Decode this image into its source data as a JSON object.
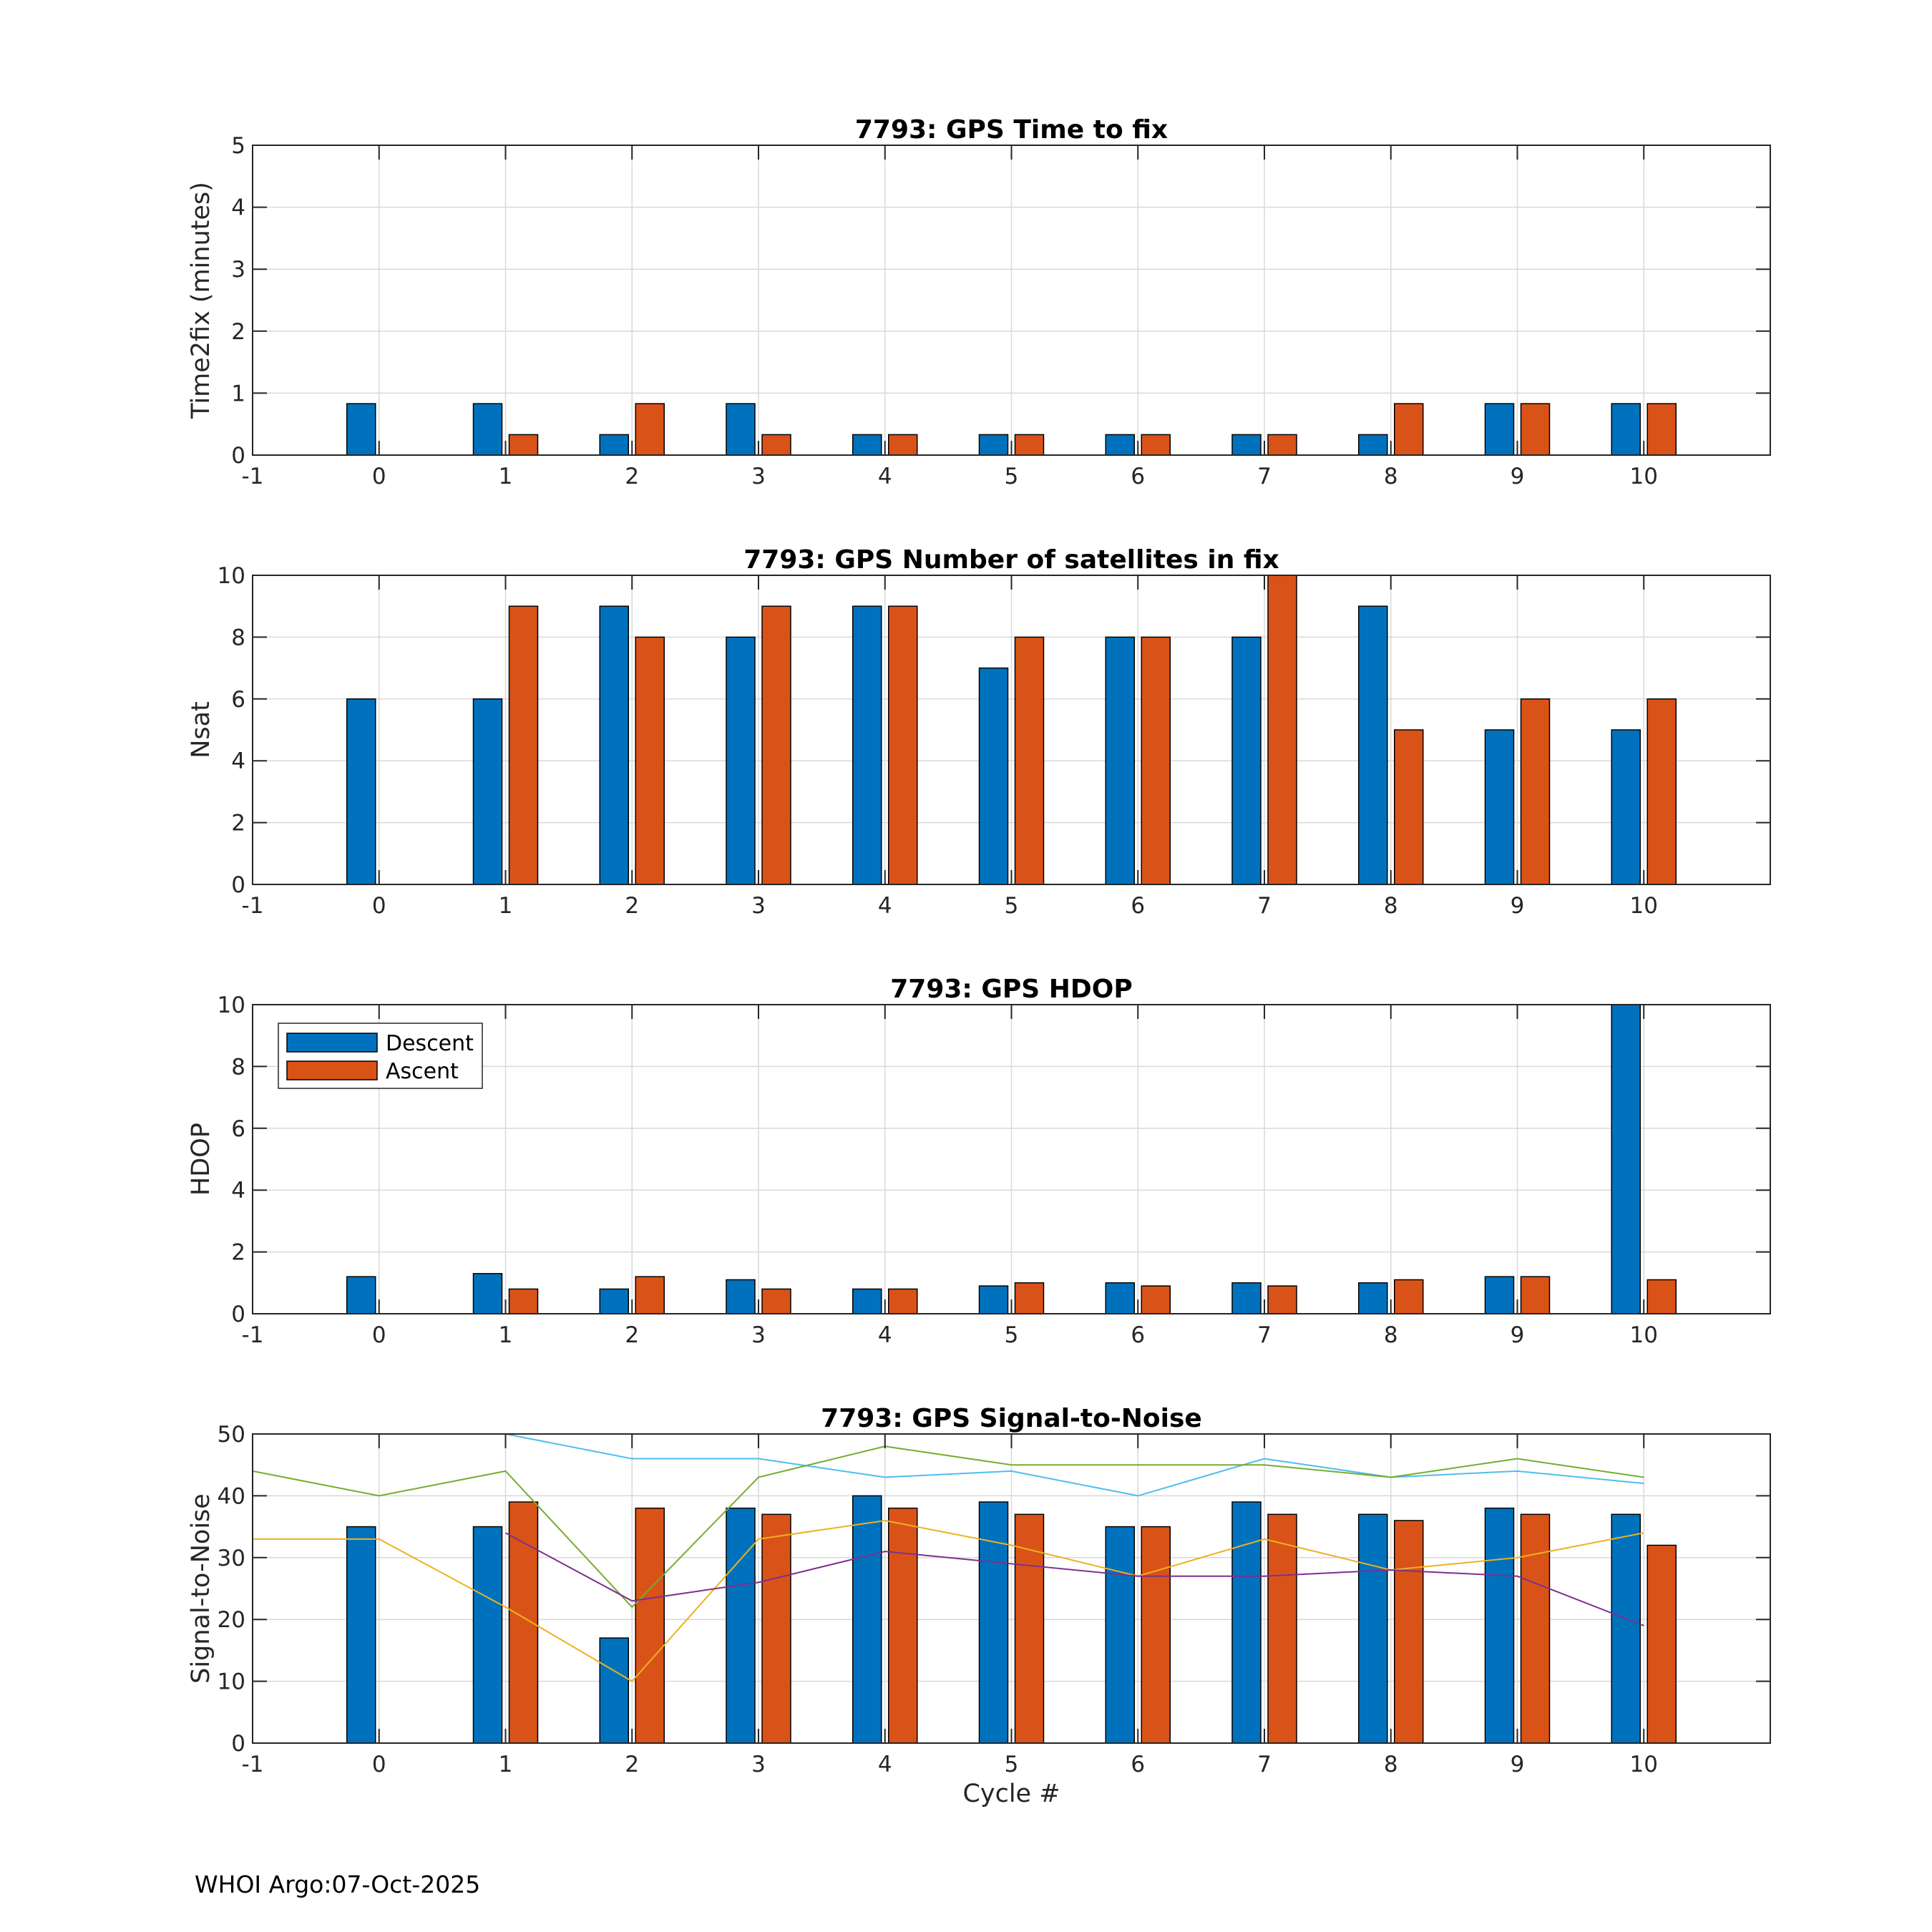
{
  "colors": {
    "descent": "#0072BD",
    "ascent": "#D95319",
    "grid": "#d9d9d9",
    "axis": "#262626",
    "snr_line_1": "#4DBEEE",
    "snr_line_2": "#77AC30",
    "snr_line_3": "#EDB120",
    "snr_line_4": "#7E2F8E"
  },
  "footer": "WHOI Argo:07-Oct-2025",
  "legend": {
    "descent": "Descent",
    "ascent": "Ascent"
  },
  "chart_data": [
    {
      "type": "bar",
      "title": "7793: GPS Time to fix",
      "xlabel": "",
      "ylabel": "Time2fix (minutes)",
      "xlim": [
        -1,
        11
      ],
      "ylim": [
        0,
        5
      ],
      "xticks": [
        "-1",
        "0",
        "1",
        "2",
        "3",
        "4",
        "5",
        "6",
        "7",
        "8",
        "9",
        "10"
      ],
      "yticks": [
        "0",
        "1",
        "2",
        "3",
        "4",
        "5"
      ],
      "categories": [
        0,
        1,
        2,
        3,
        4,
        5,
        6,
        7,
        8,
        9,
        10
      ],
      "series": [
        {
          "name": "Descent",
          "values": [
            0.83,
            0.83,
            0.33,
            0.83,
            0.33,
            0.33,
            0.33,
            0.33,
            0.33,
            0.83,
            0.83
          ]
        },
        {
          "name": "Ascent",
          "values": [
            null,
            0.33,
            0.83,
            0.33,
            0.33,
            0.33,
            0.33,
            0.33,
            0.83,
            0.83,
            0.83
          ]
        }
      ]
    },
    {
      "type": "bar",
      "title": "7793: GPS Number of satellites in fix",
      "xlabel": "",
      "ylabel": "Nsat",
      "xlim": [
        -1,
        11
      ],
      "ylim": [
        0,
        10
      ],
      "xticks": [
        "-1",
        "0",
        "1",
        "2",
        "3",
        "4",
        "5",
        "6",
        "7",
        "8",
        "9",
        "10"
      ],
      "yticks": [
        "0",
        "2",
        "4",
        "6",
        "8",
        "10"
      ],
      "categories": [
        0,
        1,
        2,
        3,
        4,
        5,
        6,
        7,
        8,
        9,
        10
      ],
      "series": [
        {
          "name": "Descent",
          "values": [
            6,
            6,
            9,
            8,
            9,
            7,
            8,
            8,
            9,
            5,
            5
          ]
        },
        {
          "name": "Ascent",
          "values": [
            null,
            9,
            8,
            9,
            9,
            8,
            8,
            10,
            5,
            6,
            6
          ]
        }
      ]
    },
    {
      "type": "bar",
      "title": "7793: GPS HDOP",
      "xlabel": "",
      "ylabel": "HDOP",
      "xlim": [
        -1,
        11
      ],
      "ylim": [
        0,
        10
      ],
      "xticks": [
        "-1",
        "0",
        "1",
        "2",
        "3",
        "4",
        "5",
        "6",
        "7",
        "8",
        "9",
        "10"
      ],
      "yticks": [
        "0",
        "2",
        "4",
        "6",
        "8",
        "10"
      ],
      "legend": "top-left",
      "categories": [
        0,
        1,
        2,
        3,
        4,
        5,
        6,
        7,
        8,
        9,
        10
      ],
      "series": [
        {
          "name": "Descent",
          "values": [
            1.2,
            1.3,
            0.8,
            1.1,
            0.8,
            0.9,
            1.0,
            1.0,
            1.0,
            1.2,
            10
          ]
        },
        {
          "name": "Ascent",
          "values": [
            null,
            0.8,
            1.2,
            0.8,
            0.8,
            1.0,
            0.9,
            0.9,
            1.1,
            1.2,
            1.1
          ]
        }
      ]
    },
    {
      "type": "bar",
      "title": "7793: GPS Signal-to-Noise",
      "xlabel": "Cycle #",
      "ylabel": "Signal-to-Noise",
      "xlim": [
        -1,
        11
      ],
      "ylim": [
        0,
        50
      ],
      "xticks": [
        "-1",
        "0",
        "1",
        "2",
        "3",
        "4",
        "5",
        "6",
        "7",
        "8",
        "9",
        "10"
      ],
      "yticks": [
        "0",
        "10",
        "20",
        "30",
        "40",
        "50"
      ],
      "categories": [
        0,
        1,
        2,
        3,
        4,
        5,
        6,
        7,
        8,
        9,
        10
      ],
      "series": [
        {
          "name": "Descent",
          "values": [
            35,
            35,
            17,
            38,
            40,
            39,
            35,
            39,
            37,
            38,
            37
          ]
        },
        {
          "name": "Ascent",
          "values": [
            null,
            39,
            38,
            37,
            38,
            37,
            35,
            37,
            36,
            37,
            32
          ]
        }
      ],
      "lines": [
        {
          "color_key": "snr_line_1",
          "x": [
            1,
            2,
            3,
            4,
            5,
            6,
            7,
            8,
            9,
            10
          ],
          "y": [
            50,
            46,
            46,
            43,
            44,
            40,
            46,
            43,
            44,
            42
          ]
        },
        {
          "color_key": "snr_line_2",
          "x": [
            -1,
            0,
            1,
            2,
            3,
            4,
            5,
            6,
            7,
            8,
            9,
            10
          ],
          "y": [
            44,
            40,
            44,
            22,
            43,
            48,
            45,
            45,
            45,
            43,
            46,
            43
          ]
        },
        {
          "color_key": "snr_line_3",
          "x": [
            -1,
            0,
            1,
            2,
            3,
            4,
            5,
            6,
            7,
            8,
            9,
            10
          ],
          "y": [
            33,
            33,
            22,
            10,
            33,
            36,
            32,
            27,
            33,
            28,
            30,
            34
          ]
        },
        {
          "color_key": "snr_line_4",
          "x": [
            1,
            2,
            3,
            4,
            5,
            6,
            7,
            8,
            9,
            10
          ],
          "y": [
            34,
            23,
            26,
            31,
            29,
            27,
            27,
            28,
            27,
            19
          ]
        }
      ]
    }
  ]
}
